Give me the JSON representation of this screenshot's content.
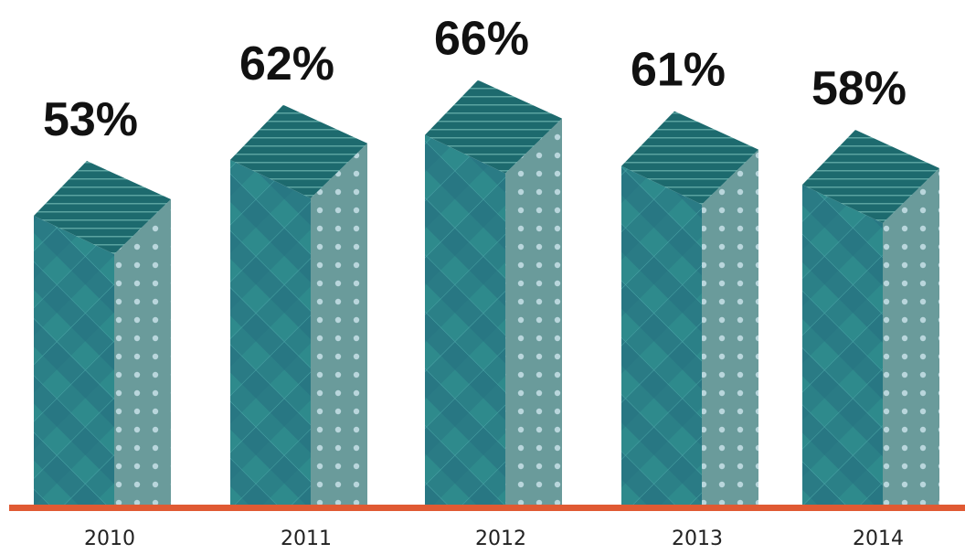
{
  "chart_data": {
    "type": "bar",
    "categories": [
      "2010",
      "2011",
      "2012",
      "2013",
      "2014"
    ],
    "values": [
      53,
      62,
      66,
      61,
      58
    ],
    "labels": [
      "53%",
      "62%",
      "66%",
      "61%",
      "58%"
    ],
    "title": "",
    "xlabel": "",
    "ylabel": "",
    "style": "3d-prism",
    "colors": {
      "front": "#2e8a8c",
      "front_alt": "#2b6f82",
      "side": "#6a9b9b",
      "top": "#1d6a6e",
      "dots": "#b9d6dc",
      "baseline": "#e05a33"
    }
  }
}
